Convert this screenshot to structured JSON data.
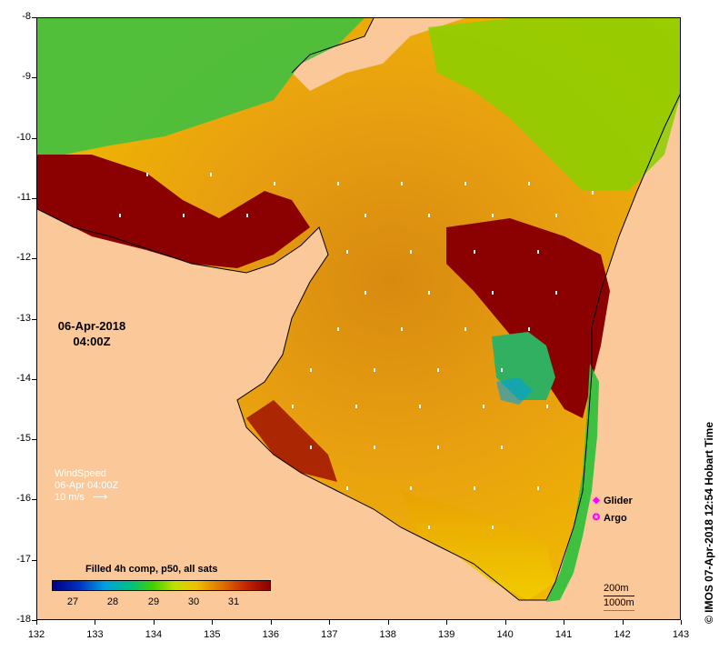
{
  "map": {
    "date_label": {
      "date": "06-Apr-2018",
      "time": "04:00Z"
    },
    "x_ticks": [
      "132",
      "133",
      "134",
      "135",
      "136",
      "137",
      "138",
      "139",
      "140",
      "141",
      "142",
      "143"
    ],
    "y_ticks": [
      "-8",
      "-9",
      "-10",
      "-11",
      "-12",
      "-13",
      "-14",
      "-15",
      "-16",
      "-17",
      "-18"
    ],
    "wind": {
      "title": "WindSpeed",
      "time": "06-Apr 04:00Z",
      "scale": "10 m/s"
    },
    "legend": [
      {
        "symbol": "glider-icon",
        "label": "Glider"
      },
      {
        "symbol": "argo-icon",
        "label": "Argo"
      }
    ],
    "colorbar": {
      "title": "Filled 4h comp, p50, all sats",
      "labels": [
        "27",
        "28",
        "29",
        "30",
        "31"
      ]
    },
    "scale_bar": {
      "depth1": "200m",
      "depth2": "1000m"
    },
    "credit": "© IMOS 07-Apr-2018 12:54 Hobart Time",
    "colors": {
      "land": "#fbc89a",
      "sea_warm": "#e08000",
      "sea_hot": "#8b0000",
      "sea_cool": "#40c040"
    }
  }
}
